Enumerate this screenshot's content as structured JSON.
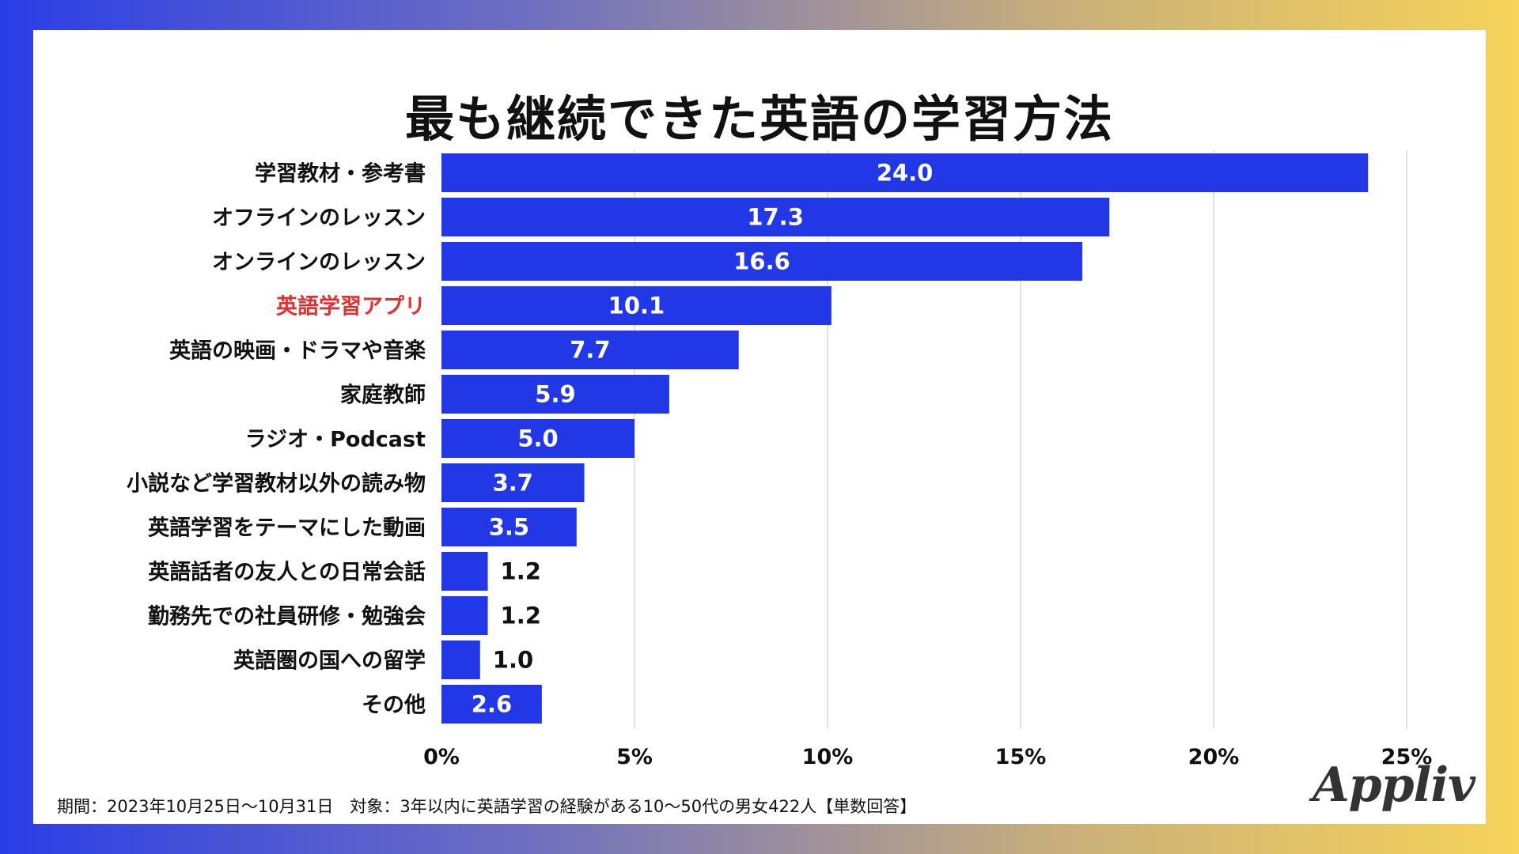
{
  "footnote": "期間：2023年10月25日〜10月31日　対象：3年以内に英語学習の経験がある10〜50代の男女422人【単数回答】",
  "logo_text": "Appliv",
  "colors": {
    "bar": "#2238e6",
    "highlight_label": "#e03131",
    "label": "#111111",
    "grid": "#d9d9d9"
  },
  "chart_data": {
    "type": "bar",
    "orientation": "horizontal",
    "title": "最も継続できた英語の学習方法",
    "categories": [
      "学習教材・参考書",
      "オフラインのレッスン",
      "オンラインのレッスン",
      "英語学習アプリ",
      "英語の映画・ドラマや音楽",
      "家庭教師",
      "ラジオ・Podcast",
      "小説など学習教材以外の読み物",
      "英語学習をテーマにした動画",
      "英語話者の友人との日常会話",
      "勤務先での社員研修・勉強会",
      "英語圏の国への留学",
      "その他"
    ],
    "values": [
      24.0,
      17.3,
      16.6,
      10.1,
      7.7,
      5.9,
      5.0,
      3.7,
      3.5,
      1.2,
      1.2,
      1.0,
      2.6
    ],
    "value_labels": [
      "24.0",
      "17.3",
      "16.6",
      "10.1",
      "7.7",
      "5.9",
      "5.0",
      "3.7",
      "3.5",
      "1.2",
      "1.2",
      "1.0",
      "2.6"
    ],
    "highlight_index": 3,
    "xlim": [
      0,
      25
    ],
    "xticks": [
      0,
      5,
      10,
      15,
      20,
      25
    ],
    "xtick_labels": [
      "0%",
      "5%",
      "10%",
      "15%",
      "20%",
      "25%"
    ],
    "grid": true
  }
}
